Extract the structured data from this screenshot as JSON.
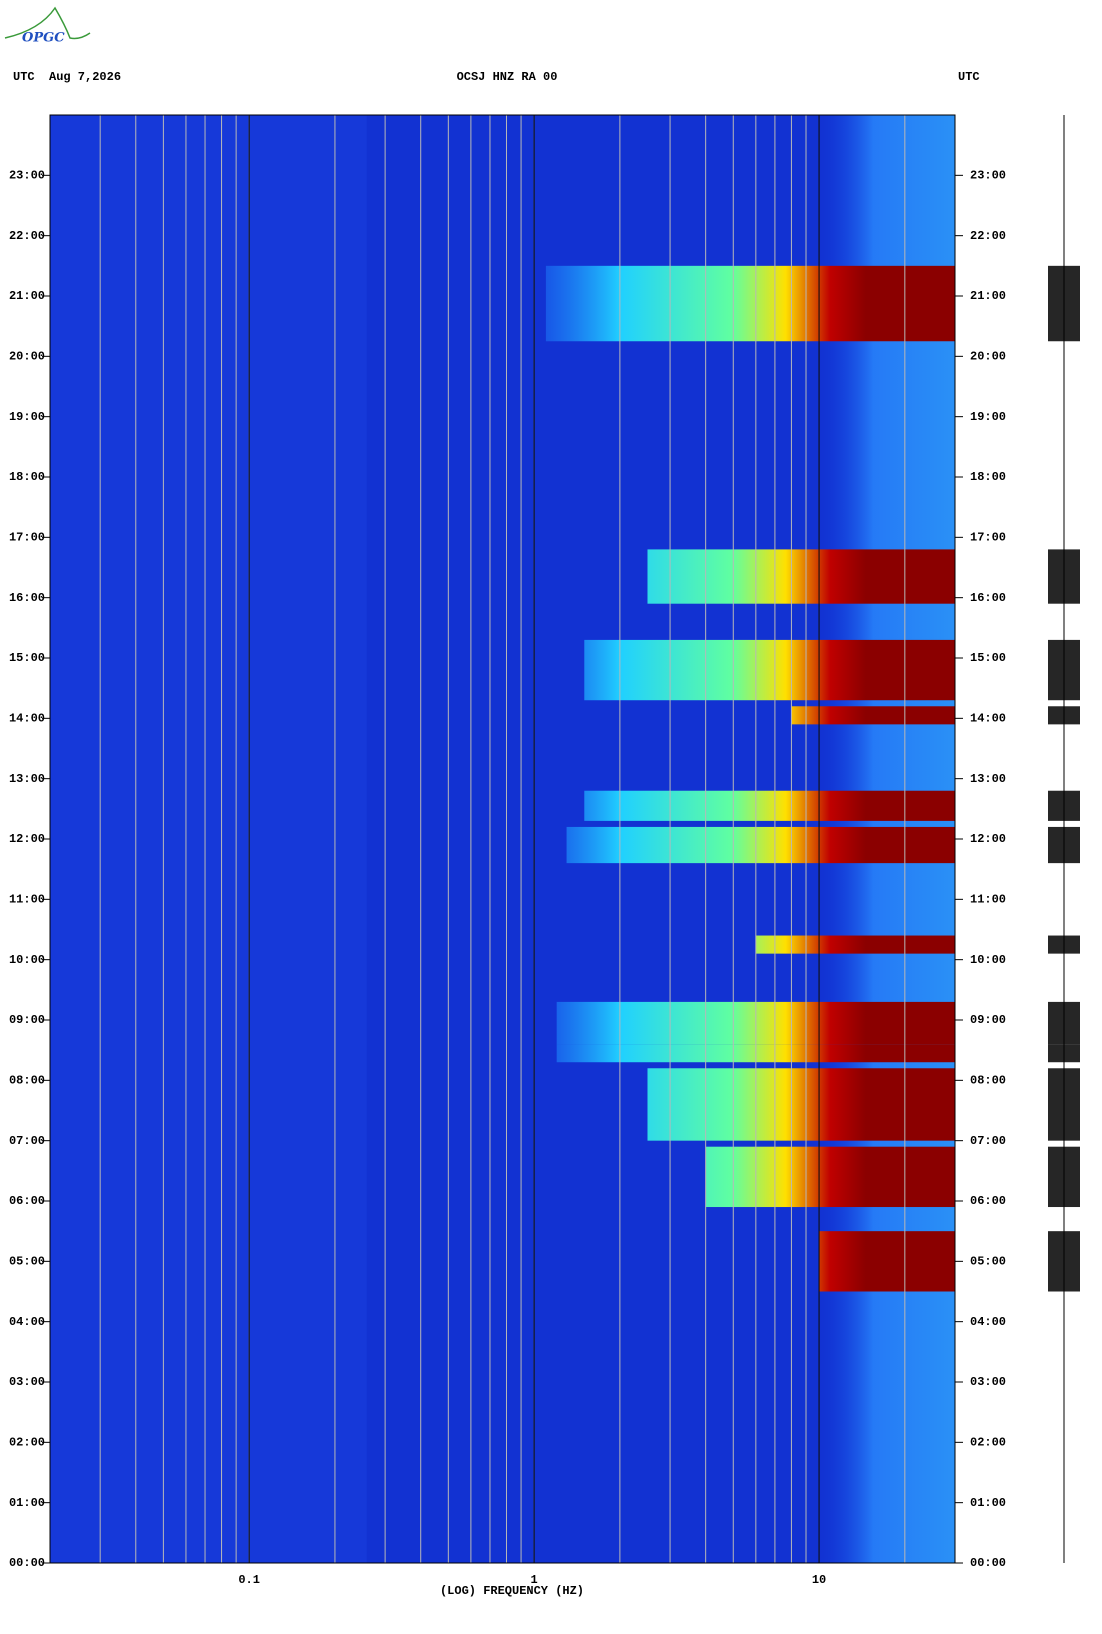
{
  "header": {
    "logo": "OPGC"
  },
  "chart_data": {
    "type": "spectrogram",
    "title": "OCSJ HNZ RA 00",
    "left_label": "UTC  Aug 7,2026",
    "right_label": "UTC",
    "xlabel": "(LOG) FREQUENCY (HZ)",
    "xscale": "log",
    "xlim": [
      0.02,
      30
    ],
    "xticks": [
      0.1,
      1,
      10
    ],
    "xgrid": [
      0.03,
      0.04,
      0.05,
      0.06,
      0.07,
      0.08,
      0.09,
      0.1,
      0.2,
      0.3,
      0.4,
      0.5,
      0.6,
      0.7,
      0.8,
      0.9,
      1,
      2,
      3,
      4,
      5,
      6,
      7,
      8,
      9,
      10,
      20
    ],
    "ylim": [
      0,
      24
    ],
    "yticks": [
      {
        "value": 0,
        "label": "00:00"
      },
      {
        "value": 1,
        "label": "01:00"
      },
      {
        "value": 2,
        "label": "02:00"
      },
      {
        "value": 3,
        "label": "03:00"
      },
      {
        "value": 4,
        "label": "04:00"
      },
      {
        "value": 5,
        "label": "05:00"
      },
      {
        "value": 6,
        "label": "06:00"
      },
      {
        "value": 7,
        "label": "07:00"
      },
      {
        "value": 8,
        "label": "08:00"
      },
      {
        "value": 9,
        "label": "09:00"
      },
      {
        "value": 10,
        "label": "10:00"
      },
      {
        "value": 11,
        "label": "11:00"
      },
      {
        "value": 12,
        "label": "12:00"
      },
      {
        "value": 13,
        "label": "13:00"
      },
      {
        "value": 14,
        "label": "14:00"
      },
      {
        "value": 15,
        "label": "15:00"
      },
      {
        "value": 16,
        "label": "16:00"
      },
      {
        "value": 17,
        "label": "17:00"
      },
      {
        "value": 18,
        "label": "18:00"
      },
      {
        "value": 19,
        "label": "19:00"
      },
      {
        "value": 20,
        "label": "20:00"
      },
      {
        "value": 21,
        "label": "21:00"
      },
      {
        "value": 22,
        "label": "22:00"
      },
      {
        "value": 23,
        "label": "23:00"
      }
    ],
    "bands": [
      {
        "time": [
          20.25,
          21.5
        ],
        "freq": 1.1
      },
      {
        "time": [
          15.9,
          16.8
        ],
        "freq": 2.5
      },
      {
        "time": [
          14.3,
          15.3
        ],
        "freq": 1.5
      },
      {
        "time": [
          13.9,
          14.2
        ],
        "freq": 8
      },
      {
        "time": [
          12.3,
          12.8
        ],
        "freq": 1.5
      },
      {
        "time": [
          11.6,
          12.2
        ],
        "freq": 1.3
      },
      {
        "time": [
          10.1,
          10.4
        ],
        "freq": 6
      },
      {
        "time": [
          8.6,
          9.3
        ],
        "freq": 1.2
      },
      {
        "time": [
          8.3,
          8.6
        ],
        "freq": 1.2
      },
      {
        "time": [
          7.0,
          8.2
        ],
        "freq": 2.5
      },
      {
        "time": [
          5.9,
          6.9
        ],
        "freq": 4
      },
      {
        "time": [
          4.5,
          5.5
        ],
        "freq": 10
      }
    ]
  }
}
